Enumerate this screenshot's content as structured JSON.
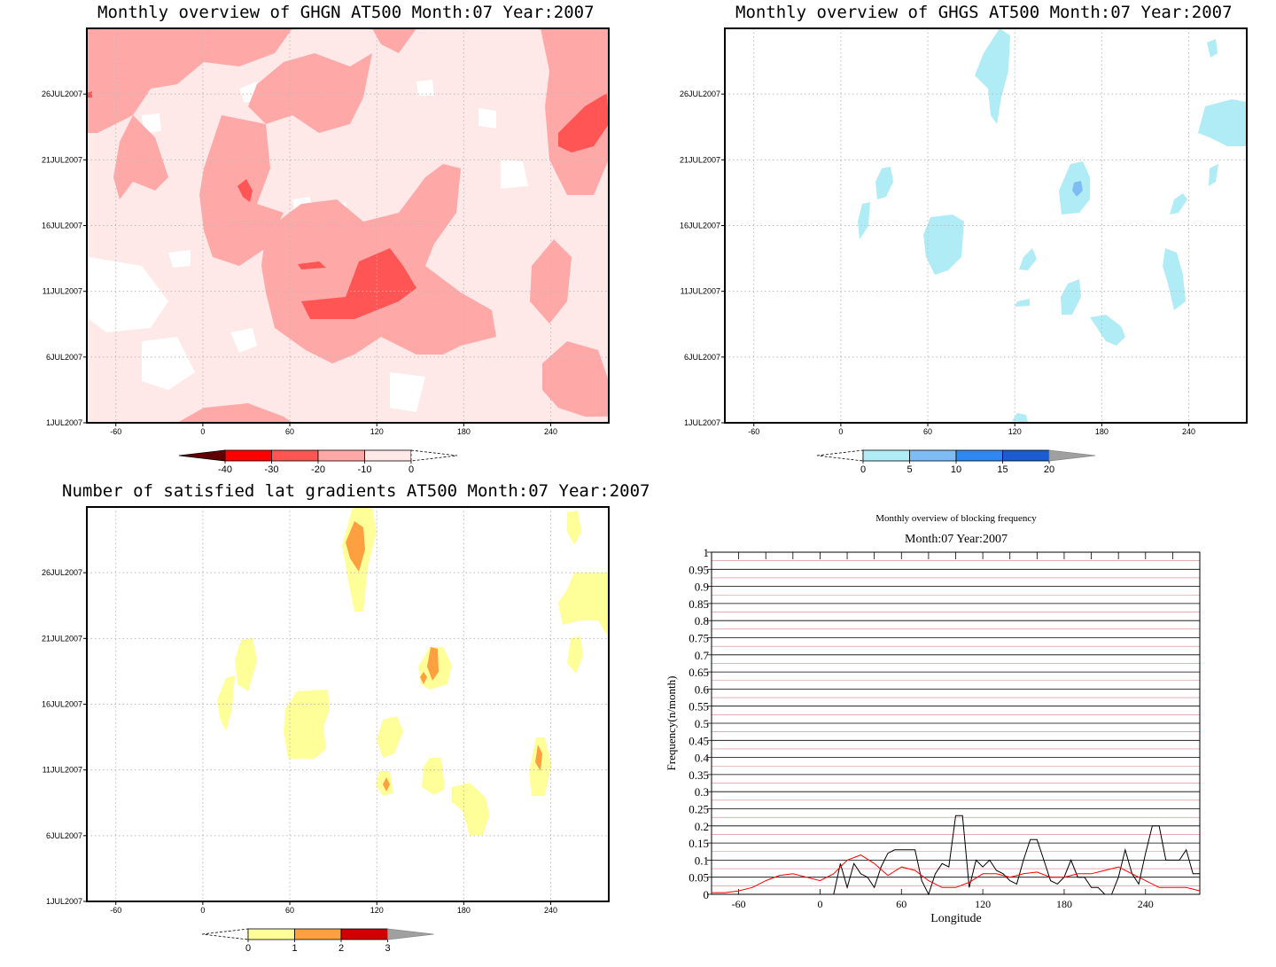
{
  "chart_data": [
    {
      "type": "heatmap",
      "title": "Monthly overview of GHGN AT500 Month:07 Year:2007",
      "xticks": [
        "-60",
        "0",
        "60",
        "120",
        "180",
        "240"
      ],
      "xtick_values": [
        -60,
        0,
        60,
        120,
        180,
        240
      ],
      "xlim": [
        -80,
        280
      ],
      "yticks": [
        "1JUL2007",
        "6JUL2007",
        "11JUL2007",
        "16JUL2007",
        "21JUL2007",
        "26JUL2007"
      ],
      "ytick_values": [
        1,
        6,
        11,
        16,
        21,
        26
      ],
      "ylim": [
        1,
        31
      ],
      "colorbar": {
        "labels": [
          "-40",
          "-30",
          "-20",
          "-10",
          "0"
        ],
        "colors": [
          "#600000",
          "#ff0000",
          "#ff5555",
          "#ffa8a8",
          "#ffe8e8"
        ]
      }
    },
    {
      "type": "heatmap",
      "title": "Monthly overview of GHGS AT500 Month:07 Year:2007",
      "xticks": [
        "-60",
        "0",
        "60",
        "120",
        "180",
        "240"
      ],
      "xtick_values": [
        -60,
        0,
        60,
        120,
        180,
        240
      ],
      "xlim": [
        -80,
        280
      ],
      "yticks": [
        "1JUL2007",
        "6JUL2007",
        "11JUL2007",
        "16JUL2007",
        "21JUL2007",
        "26JUL2007"
      ],
      "ytick_values": [
        1,
        6,
        11,
        16,
        21,
        26
      ],
      "ylim": [
        1,
        31
      ],
      "colorbar": {
        "labels": [
          "0",
          "5",
          "10",
          "15",
          "20"
        ],
        "colors": [
          "#b0ecf6",
          "#7fbcf5",
          "#2f88ef",
          "#1d5cd0",
          "#a0a0a0"
        ]
      }
    },
    {
      "type": "heatmap",
      "title": "Number of satisfied lat gradients AT500 Month:07 Year:2007",
      "xticks": [
        "-60",
        "0",
        "60",
        "120",
        "180",
        "240"
      ],
      "xtick_values": [
        -60,
        0,
        60,
        120,
        180,
        240
      ],
      "xlim": [
        -80,
        280
      ],
      "yticks": [
        "1JUL2007",
        "6JUL2007",
        "11JUL2007",
        "16JUL2007",
        "21JUL2007",
        "26JUL2007"
      ],
      "ytick_values": [
        1,
        6,
        11,
        16,
        21,
        26
      ],
      "ylim": [
        1,
        31
      ],
      "colorbar": {
        "labels": [
          "0",
          "1",
          "2",
          "3"
        ],
        "colors": [
          "#ffff99",
          "#ffa040",
          "#d00000",
          "#a0a0a0"
        ]
      }
    },
    {
      "type": "line",
      "title": "Monthly overview of blocking frequency",
      "subtitle": "Month:07 Year:2007",
      "xlabel": "Longitude",
      "ylabel": "Frequency(n/month)",
      "xlim": [
        -80,
        280
      ],
      "ylim": [
        0,
        1
      ],
      "xticks": [
        "-60",
        "0",
        "60",
        "120",
        "180",
        "240"
      ],
      "xtick_values": [
        -60,
        0,
        60,
        120,
        180,
        240
      ],
      "yticks": [
        "0",
        "0.05",
        "0.1",
        "0.15",
        "0.2",
        "0.25",
        "0.3",
        "0.35",
        "0.4",
        "0.45",
        "0.5",
        "0.55",
        "0.6",
        "0.65",
        "0.7",
        "0.75",
        "0.8",
        "0.85",
        "0.9",
        "0.95",
        "1"
      ],
      "series": [
        {
          "color": "#000000",
          "x": [
            -80,
            10,
            15,
            20,
            25,
            30,
            35,
            40,
            45,
            50,
            55,
            60,
            65,
            70,
            75,
            80,
            85,
            90,
            95,
            100,
            105,
            110,
            115,
            120,
            125,
            130,
            135,
            140,
            145,
            150,
            155,
            160,
            165,
            170,
            175,
            180,
            185,
            190,
            195,
            200,
            205,
            210,
            215,
            220,
            225,
            230,
            235,
            240,
            245,
            250,
            255,
            260,
            265,
            270,
            275,
            280
          ],
          "y": [
            0,
            0,
            0.09,
            0.02,
            0.09,
            0.06,
            0.05,
            0.02,
            0.08,
            0.12,
            0.13,
            0.13,
            0.13,
            0.13,
            0.04,
            0,
            0.06,
            0.09,
            0.08,
            0.23,
            0.23,
            0.02,
            0.1,
            0.08,
            0.1,
            0.07,
            0.06,
            0.04,
            0.03,
            0.1,
            0.16,
            0.16,
            0.1,
            0.04,
            0.03,
            0.05,
            0.1,
            0.05,
            0.05,
            0.02,
            0.02,
            0,
            0,
            0.05,
            0.13,
            0.06,
            0.03,
            0.12,
            0.2,
            0.2,
            0.1,
            0.1,
            0.1,
            0.13,
            0.06,
            0.06
          ],
          "note": ""
        },
        {
          "color": "#ff0000",
          "x": [
            -80,
            -70,
            -60,
            -50,
            -40,
            -30,
            -20,
            -10,
            0,
            10,
            20,
            30,
            40,
            50,
            60,
            70,
            80,
            90,
            100,
            110,
            120,
            130,
            140,
            150,
            160,
            170,
            180,
            190,
            200,
            210,
            220,
            230,
            240,
            250,
            260,
            270,
            280
          ],
          "y": [
            0.005,
            0.005,
            0.01,
            0.02,
            0.04,
            0.055,
            0.06,
            0.05,
            0.04,
            0.06,
            0.1,
            0.115,
            0.09,
            0.055,
            0.08,
            0.07,
            0.04,
            0.02,
            0.02,
            0.035,
            0.06,
            0.06,
            0.05,
            0.06,
            0.065,
            0.05,
            0.05,
            0.06,
            0.06,
            0.07,
            0.08,
            0.06,
            0.04,
            0.02,
            0.02,
            0.02,
            0.01
          ]
        }
      ]
    }
  ]
}
